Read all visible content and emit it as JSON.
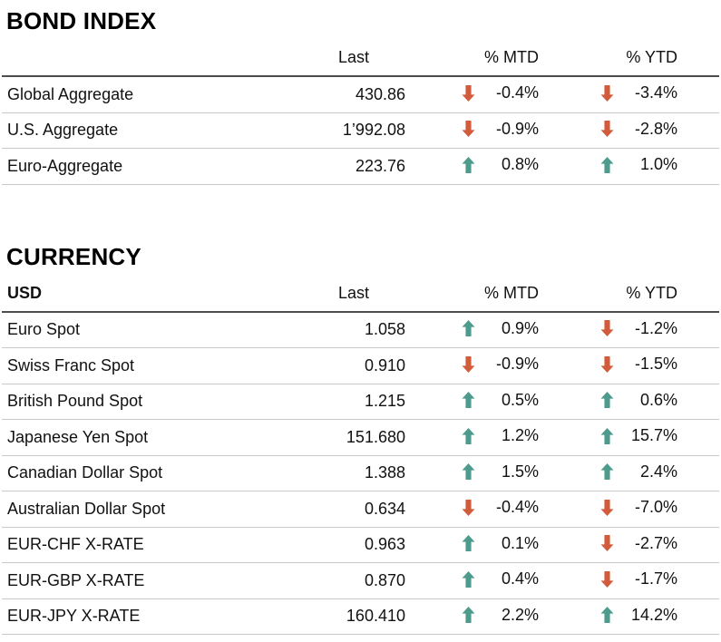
{
  "colors": {
    "up_arrow": "#4d9b8c",
    "down_arrow": "#d15b3b",
    "header_rule": "#4d4d4d",
    "row_rule": "#c9c9c9",
    "text": "#111111"
  },
  "chart_data": [
    {
      "type": "table",
      "title": "BOND INDEX",
      "columns": [
        "",
        "Last",
        "% MTD",
        "% YTD"
      ],
      "rows": [
        {
          "name": "Global Aggregate",
          "last": "430.86",
          "mtd": {
            "dir": "down",
            "value": "-0.4%"
          },
          "ytd": {
            "dir": "down",
            "value": "-3.4%"
          }
        },
        {
          "name": "U.S. Aggregate",
          "last": "1’992.08",
          "mtd": {
            "dir": "down",
            "value": "-0.9%"
          },
          "ytd": {
            "dir": "down",
            "value": "-2.8%"
          }
        },
        {
          "name": "Euro-Aggregate",
          "last": "223.76",
          "mtd": {
            "dir": "up",
            "value": "0.8%"
          },
          "ytd": {
            "dir": "up",
            "value": "1.0%"
          }
        }
      ]
    },
    {
      "type": "table",
      "title": "CURRENCY",
      "columns": [
        "USD",
        "Last",
        "% MTD",
        "% YTD"
      ],
      "rows": [
        {
          "name": "Euro Spot",
          "last": "1.058",
          "mtd": {
            "dir": "up",
            "value": "0.9%"
          },
          "ytd": {
            "dir": "down",
            "value": "-1.2%"
          }
        },
        {
          "name": "Swiss Franc Spot",
          "last": "0.910",
          "mtd": {
            "dir": "down",
            "value": "-0.9%"
          },
          "ytd": {
            "dir": "down",
            "value": "-1.5%"
          }
        },
        {
          "name": "British Pound Spot",
          "last": "1.215",
          "mtd": {
            "dir": "up",
            "value": "0.5%"
          },
          "ytd": {
            "dir": "up",
            "value": "0.6%"
          }
        },
        {
          "name": "Japanese Yen Spot",
          "last": "151.680",
          "mtd": {
            "dir": "up",
            "value": "1.2%"
          },
          "ytd": {
            "dir": "up",
            "value": "15.7%"
          }
        },
        {
          "name": "Canadian Dollar Spot",
          "last": "1.388",
          "mtd": {
            "dir": "up",
            "value": "1.5%"
          },
          "ytd": {
            "dir": "up",
            "value": "2.4%"
          }
        },
        {
          "name": "Australian Dollar Spot",
          "last": "0.634",
          "mtd": {
            "dir": "down",
            "value": "-0.4%"
          },
          "ytd": {
            "dir": "down",
            "value": "-7.0%"
          }
        },
        {
          "name": "EUR-CHF X-RATE",
          "last": "0.963",
          "mtd": {
            "dir": "up",
            "value": "0.1%"
          },
          "ytd": {
            "dir": "down",
            "value": "-2.7%"
          }
        },
        {
          "name": "EUR-GBP X-RATE",
          "last": "0.870",
          "mtd": {
            "dir": "up",
            "value": "0.4%"
          },
          "ytd": {
            "dir": "down",
            "value": "-1.7%"
          }
        },
        {
          "name": "EUR-JPY X-RATE",
          "last": "160.410",
          "mtd": {
            "dir": "up",
            "value": "2.2%"
          },
          "ytd": {
            "dir": "up",
            "value": "14.2%"
          }
        }
      ]
    }
  ]
}
